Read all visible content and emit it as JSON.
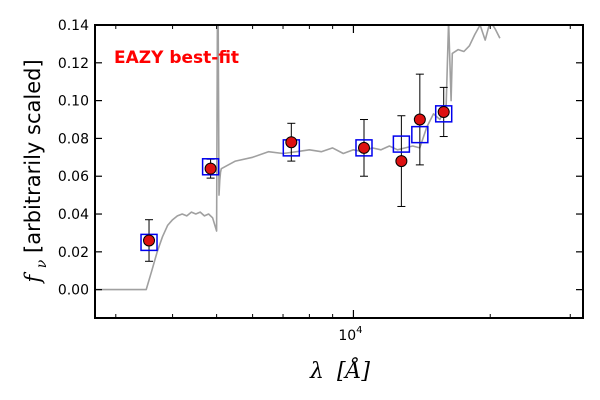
{
  "chart_data": {
    "type": "scatter",
    "title": "",
    "xlabel": "λ [Å]",
    "ylabel": "f_ν [arbitrarily scaled]",
    "ylabel_symbol": "f",
    "ylabel_subscript": "ν",
    "ylabel_text": " [arbitrarily scaled]",
    "xlabel_symbol": "λ",
    "xlabel_unit": "[Å]",
    "xscale": "log",
    "xlim": [
      2700,
      32000
    ],
    "ylim": [
      -0.015,
      0.14
    ],
    "x_ticks": [
      {
        "value": 10000,
        "label": "10",
        "exp": "4"
      }
    ],
    "y_ticks": [
      0.0,
      0.02,
      0.04,
      0.06,
      0.08,
      0.1,
      0.12,
      0.14
    ],
    "y_tick_labels": [
      "0.00",
      "0.02",
      "0.04",
      "0.06",
      "0.08",
      "0.10",
      "0.12",
      "0.14"
    ],
    "grid": false,
    "annotation": {
      "text": "EAZY best-fit",
      "color": "#ff0000",
      "position": "top-left"
    },
    "colors": {
      "model_line": "#a0a0a0",
      "observed_fill": "#dd1111",
      "observed_edge": "#000000",
      "errorbar": "#000000",
      "model_box": "#0000ee"
    },
    "series": [
      {
        "role": "model-spectrum",
        "x": [
          2700,
          3500,
          3600,
          3700,
          3800,
          3900,
          4000,
          4100,
          4200,
          4300,
          4400,
          4500,
          4600,
          4700,
          4800,
          4900,
          5000,
          5020,
          5040,
          5060,
          5080,
          5100,
          5120,
          5500,
          6000,
          6500,
          7000,
          7500,
          8000,
          8500,
          9000,
          9500,
          10000,
          10500,
          11000,
          11500,
          12000,
          12500,
          13000,
          13500,
          14000,
          14500,
          15000,
          15500,
          16000,
          16200,
          16400,
          16500,
          17000,
          17500,
          18000,
          18500,
          19000,
          19500,
          20000,
          20500,
          21000
        ],
        "y": [
          0.0,
          0.0,
          0.01,
          0.02,
          0.028,
          0.034,
          0.037,
          0.039,
          0.04,
          0.039,
          0.041,
          0.04,
          0.041,
          0.039,
          0.04,
          0.038,
          0.031,
          0.142,
          0.14,
          0.05,
          0.058,
          0.062,
          0.064,
          0.068,
          0.07,
          0.073,
          0.072,
          0.073,
          0.074,
          0.073,
          0.075,
          0.072,
          0.074,
          0.073,
          0.075,
          0.074,
          0.076,
          0.074,
          0.075,
          0.076,
          0.075,
          0.086,
          0.093,
          0.09,
          0.098,
          0.142,
          0.1,
          0.125,
          0.127,
          0.126,
          0.129,
          0.135,
          0.14,
          0.132,
          0.142,
          0.138,
          0.133
        ]
      },
      {
        "role": "observed-photometry",
        "x": [
          3550,
          4850,
          7300,
          10550,
          12750,
          14000,
          15800
        ],
        "y": [
          0.026,
          0.064,
          0.078,
          0.075,
          0.068,
          0.09,
          0.094
        ],
        "yerr": [
          0.011,
          0.005,
          0.01,
          0.015,
          0.024,
          0.024,
          0.013
        ]
      },
      {
        "role": "model-photometry",
        "x": [
          3550,
          4850,
          7300,
          10550,
          12750,
          14000,
          15800
        ],
        "y": [
          0.025,
          0.065,
          0.075,
          0.075,
          0.077,
          0.082,
          0.093
        ]
      }
    ]
  }
}
